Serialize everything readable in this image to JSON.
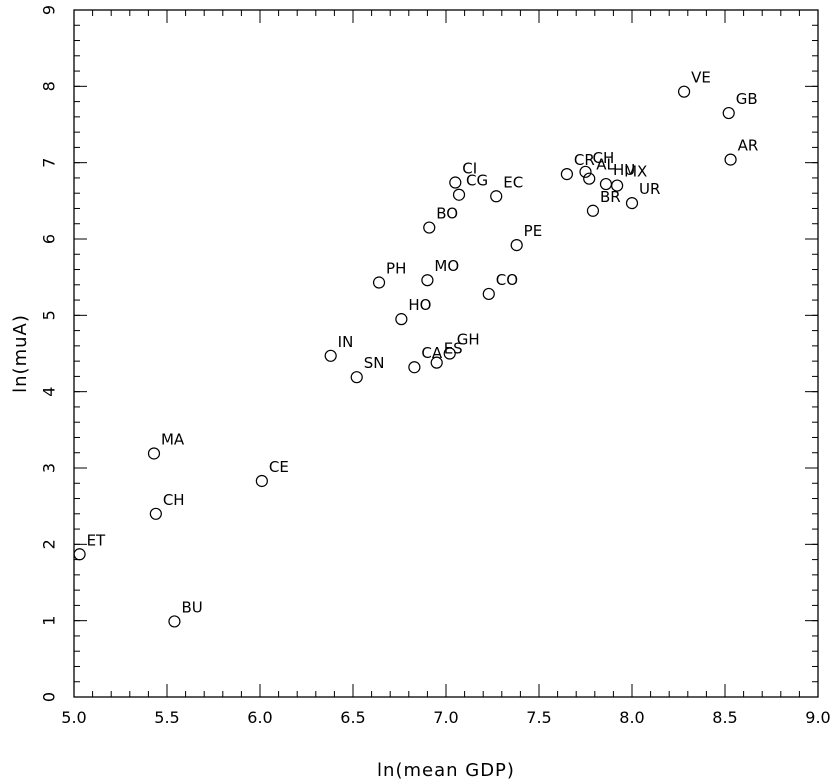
{
  "chart_data": {
    "type": "scatter",
    "title": "",
    "xlabel": "ln(mean GDP)",
    "ylabel": "ln(muA)",
    "xlim": [
      5.0,
      9.0
    ],
    "ylim": [
      0,
      9
    ],
    "x_ticks": [
      "5.0",
      "5.5",
      "6.0",
      "6.5",
      "7.0",
      "7.5",
      "8.0",
      "8.5",
      "9.0"
    ],
    "x_tick_values": [
      5.0,
      5.5,
      6.0,
      6.5,
      7.0,
      7.5,
      8.0,
      8.5,
      9.0
    ],
    "y_ticks": [
      "0",
      "1",
      "2",
      "3",
      "4",
      "5",
      "6",
      "7",
      "8",
      "9"
    ],
    "y_tick_values": [
      0,
      1,
      2,
      3,
      4,
      5,
      6,
      7,
      8,
      9
    ],
    "x_minor_step": 0.1,
    "y_minor_step": 0.2,
    "grid": false,
    "marker": "open-circle",
    "points": [
      {
        "label": "ET",
        "x": 5.03,
        "y": 1.87
      },
      {
        "label": "MA",
        "x": 5.43,
        "y": 3.19
      },
      {
        "label": "CH",
        "x": 5.44,
        "y": 2.4
      },
      {
        "label": "BU",
        "x": 5.54,
        "y": 0.99
      },
      {
        "label": "CE",
        "x": 6.01,
        "y": 2.83
      },
      {
        "label": "IN",
        "x": 6.38,
        "y": 4.47
      },
      {
        "label": "SN",
        "x": 6.52,
        "y": 4.19
      },
      {
        "label": "PH",
        "x": 6.64,
        "y": 5.43
      },
      {
        "label": "HO",
        "x": 6.76,
        "y": 4.95
      },
      {
        "label": "CA",
        "x": 6.83,
        "y": 4.32
      },
      {
        "label": "MO",
        "x": 6.9,
        "y": 5.46
      },
      {
        "label": "BO",
        "x": 6.91,
        "y": 6.15
      },
      {
        "label": "ES",
        "x": 6.95,
        "y": 4.38
      },
      {
        "label": "GH",
        "x": 7.02,
        "y": 4.5
      },
      {
        "label": "CI",
        "x": 7.05,
        "y": 6.74
      },
      {
        "label": "CG",
        "x": 7.07,
        "y": 6.58
      },
      {
        "label": "CO",
        "x": 7.23,
        "y": 5.28
      },
      {
        "label": "EC",
        "x": 7.27,
        "y": 6.56
      },
      {
        "label": "PE",
        "x": 7.38,
        "y": 5.92
      },
      {
        "label": "CR",
        "x": 7.65,
        "y": 6.85
      },
      {
        "label": "CH",
        "x": 7.75,
        "y": 6.88
      },
      {
        "label": "AL",
        "x": 7.77,
        "y": 6.79
      },
      {
        "label": "BR",
        "x": 7.79,
        "y": 6.37
      },
      {
        "label": "HU",
        "x": 7.86,
        "y": 6.72
      },
      {
        "label": "MX",
        "x": 7.92,
        "y": 6.7
      },
      {
        "label": "UR",
        "x": 8.0,
        "y": 6.47
      },
      {
        "label": "VE",
        "x": 8.28,
        "y": 7.93
      },
      {
        "label": "GB",
        "x": 8.52,
        "y": 7.65
      },
      {
        "label": "AR",
        "x": 8.53,
        "y": 7.04
      }
    ]
  }
}
